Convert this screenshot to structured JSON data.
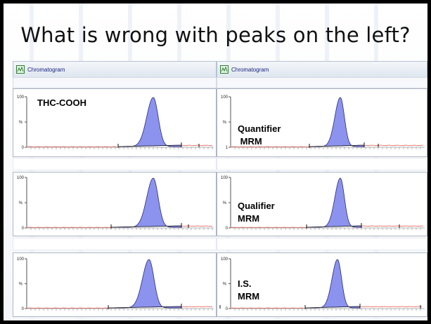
{
  "title": "What is wrong with peaks on the left?",
  "window_label": "Chromatogram",
  "y_axis": {
    "top": "100",
    "mid": "%",
    "bottom": "0"
  },
  "right_bottom_labels": [
    "1",
    "0",
    "0"
  ],
  "panels": [
    {
      "column": "left",
      "row": 0,
      "label_lines": [
        "THC-COOH"
      ]
    },
    {
      "column": "left",
      "row": 1,
      "label_lines": []
    },
    {
      "column": "left",
      "row": 2,
      "label_lines": []
    },
    {
      "column": "right",
      "row": 0,
      "label_lines": [
        "Quantifier",
        " MRM"
      ]
    },
    {
      "column": "right",
      "row": 1,
      "label_lines": [
        "Qualifier",
        "MRM"
      ]
    },
    {
      "column": "right",
      "row": 2,
      "label_lines": [
        "I.S.",
        "MRM"
      ]
    }
  ],
  "colors": {
    "peak_fill": "#8c93ee",
    "peak_stroke": "#2a2a7a",
    "baseline": "#e35b4f",
    "background": "#000000"
  }
}
